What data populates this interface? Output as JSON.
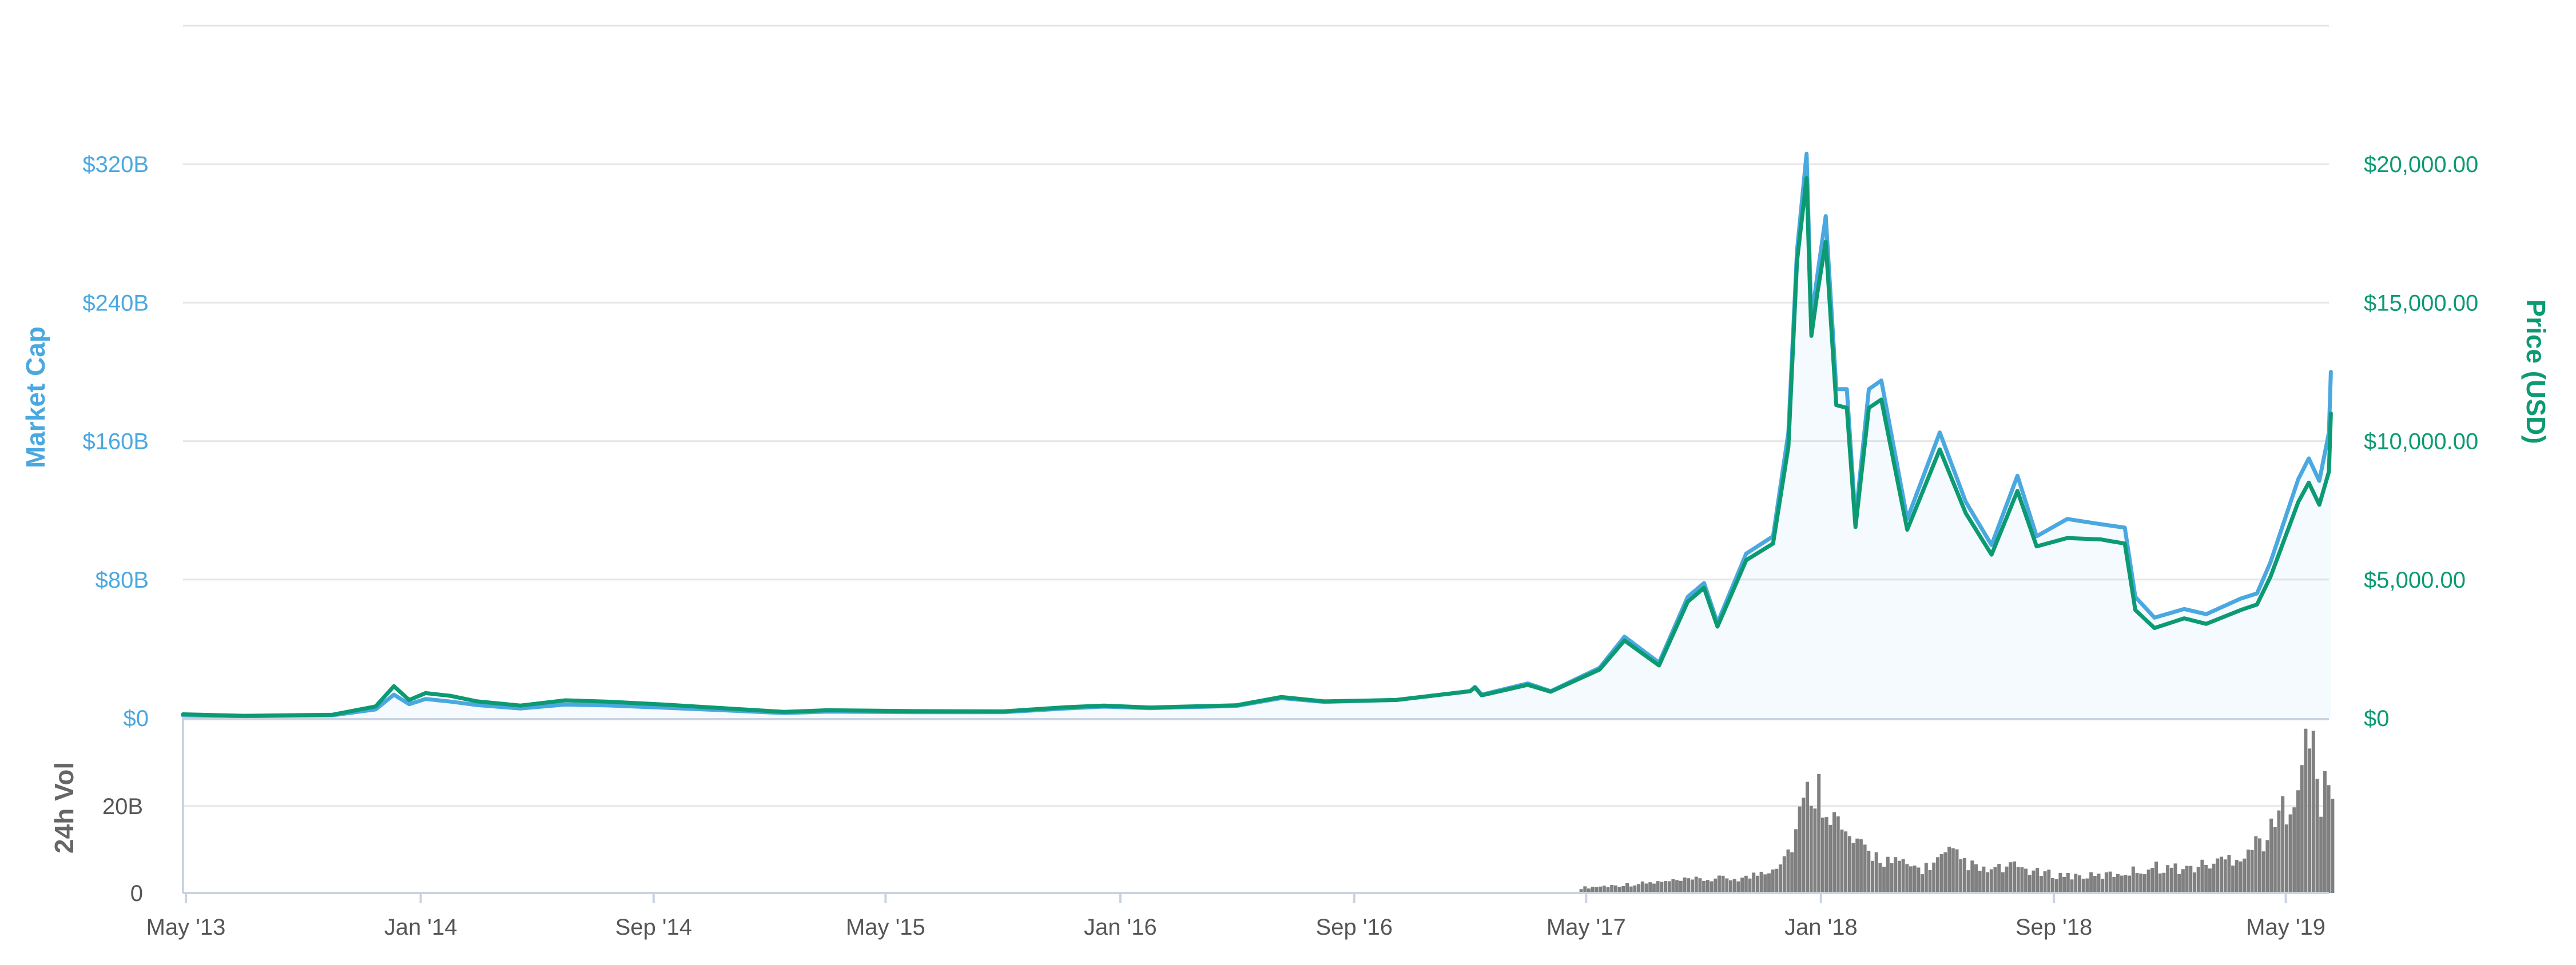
{
  "chart_data": {
    "type": "line",
    "colors": {
      "market_cap": "#4aa8e0",
      "price": "#0b9a72",
      "volume": "#808080",
      "grid": "#e6e6e6",
      "axis": "#c9d3e0",
      "text": "#555555",
      "volume_label": "#666666"
    },
    "axes": {
      "left": {
        "label": "Market Cap",
        "ticks": [
          "$0",
          "$80B",
          "$160B",
          "$240B",
          "$320B"
        ],
        "ylim": [
          0,
          400
        ]
      },
      "right": {
        "label": "Price (USD)",
        "ticks": [
          "$0",
          "$5,000.00",
          "$10,000.00",
          "$15,000.00",
          "$20,000.00"
        ],
        "ylim": [
          0,
          25000
        ]
      },
      "volume": {
        "label": "24h Vol",
        "ticks": [
          "0",
          "20B"
        ],
        "ylim": [
          0,
          40
        ]
      },
      "x": {
        "ticks": [
          "May '13",
          "Jan '14",
          "Sep '14",
          "May '15",
          "Jan '16",
          "Sep '16",
          "May '17",
          "Jan '18",
          "Sep '18",
          "May '19"
        ],
        "range": [
          "2013-04-28",
          "2019-06-15"
        ]
      }
    },
    "series": [
      {
        "name": "Market Cap",
        "axis": "left",
        "points": [
          [
            "2013-04-28",
            1.5
          ],
          [
            "2013-07-01",
            1.1
          ],
          [
            "2013-10-01",
            1.6
          ],
          [
            "2013-11-15",
            5.0
          ],
          [
            "2013-12-04",
            13.5
          ],
          [
            "2013-12-20",
            8.0
          ],
          [
            "2014-01-06",
            11.0
          ],
          [
            "2014-02-01",
            9.5
          ],
          [
            "2014-03-01",
            7.5
          ],
          [
            "2014-04-15",
            5.5
          ],
          [
            "2014-06-01",
            7.8
          ],
          [
            "2014-07-15",
            7.3
          ],
          [
            "2014-09-15",
            5.9
          ],
          [
            "2014-11-01",
            4.8
          ],
          [
            "2015-01-15",
            2.9
          ],
          [
            "2015-03-01",
            3.7
          ],
          [
            "2015-06-01",
            3.4
          ],
          [
            "2015-09-01",
            3.4
          ],
          [
            "2015-11-05",
            5.5
          ],
          [
            "2015-12-15",
            6.6
          ],
          [
            "2016-02-01",
            5.7
          ],
          [
            "2016-05-01",
            7.0
          ],
          [
            "2016-06-17",
            11.5
          ],
          [
            "2016-08-01",
            9.3
          ],
          [
            "2016-10-15",
            10.5
          ],
          [
            "2016-12-31",
            15.5
          ],
          [
            "2017-01-05",
            18.0
          ],
          [
            "2017-01-12",
            13.5
          ],
          [
            "2017-03-01",
            20.0
          ],
          [
            "2017-03-25",
            15.5
          ],
          [
            "2017-05-15",
            29.0
          ],
          [
            "2017-06-10",
            47.0
          ],
          [
            "2017-07-16",
            32.0
          ],
          [
            "2017-08-15",
            70.0
          ],
          [
            "2017-09-01",
            78.0
          ],
          [
            "2017-09-15",
            55.0
          ],
          [
            "2017-10-15",
            95.0
          ],
          [
            "2017-11-12",
            105.0
          ],
          [
            "2017-11-28",
            165.0
          ],
          [
            "2017-12-07",
            270.0
          ],
          [
            "2017-12-17",
            326.0
          ],
          [
            "2017-12-22",
            230.0
          ],
          [
            "2017-12-28",
            255.0
          ],
          [
            "2018-01-06",
            290.0
          ],
          [
            "2018-01-17",
            190.0
          ],
          [
            "2018-01-28",
            190.0
          ],
          [
            "2018-02-06",
            115.0
          ],
          [
            "2018-02-20",
            190.0
          ],
          [
            "2018-03-05",
            195.0
          ],
          [
            "2018-04-01",
            115.0
          ],
          [
            "2018-05-05",
            165.0
          ],
          [
            "2018-06-01",
            125.0
          ],
          [
            "2018-06-28",
            100.0
          ],
          [
            "2018-07-25",
            140.0
          ],
          [
            "2018-08-14",
            105.0
          ],
          [
            "2018-09-15",
            115.0
          ],
          [
            "2018-10-20",
            112.0
          ],
          [
            "2018-11-14",
            110.0
          ],
          [
            "2018-11-25",
            70.0
          ],
          [
            "2018-12-15",
            58.0
          ],
          [
            "2019-01-15",
            63.0
          ],
          [
            "2019-02-07",
            60.0
          ],
          [
            "2019-03-15",
            69.0
          ],
          [
            "2019-04-01",
            72.0
          ],
          [
            "2019-04-15",
            90.0
          ],
          [
            "2019-05-14",
            138.0
          ],
          [
            "2019-05-25",
            150.0
          ],
          [
            "2019-06-05",
            137.0
          ],
          [
            "2019-06-15",
            165.0
          ],
          [
            "2019-06-17",
            200.0
          ]
        ]
      },
      {
        "name": "Price (USD)",
        "axis": "right",
        "points": [
          [
            "2013-04-28",
            135
          ],
          [
            "2013-07-01",
            80
          ],
          [
            "2013-10-01",
            120
          ],
          [
            "2013-11-15",
            420
          ],
          [
            "2013-12-04",
            1150
          ],
          [
            "2013-12-20",
            650
          ],
          [
            "2014-01-06",
            900
          ],
          [
            "2014-02-01",
            800
          ],
          [
            "2014-03-01",
            600
          ],
          [
            "2014-04-15",
            450
          ],
          [
            "2014-06-01",
            640
          ],
          [
            "2014-07-15",
            590
          ],
          [
            "2014-09-15",
            480
          ],
          [
            "2014-11-01",
            380
          ],
          [
            "2015-01-15",
            220
          ],
          [
            "2015-03-01",
            280
          ],
          [
            "2015-06-01",
            250
          ],
          [
            "2015-09-01",
            240
          ],
          [
            "2015-11-05",
            390
          ],
          [
            "2015-12-15",
            450
          ],
          [
            "2016-02-01",
            380
          ],
          [
            "2016-05-01",
            460
          ],
          [
            "2016-06-17",
            760
          ],
          [
            "2016-08-01",
            600
          ],
          [
            "2016-10-15",
            650
          ],
          [
            "2016-12-31",
            970
          ],
          [
            "2017-01-05",
            1100
          ],
          [
            "2017-01-12",
            820
          ],
          [
            "2017-03-01",
            1200
          ],
          [
            "2017-03-25",
            950
          ],
          [
            "2017-05-15",
            1750
          ],
          [
            "2017-06-10",
            2800
          ],
          [
            "2017-07-16",
            1900
          ],
          [
            "2017-08-15",
            4200
          ],
          [
            "2017-09-01",
            4700
          ],
          [
            "2017-09-15",
            3300
          ],
          [
            "2017-10-15",
            5700
          ],
          [
            "2017-11-12",
            6300
          ],
          [
            "2017-11-28",
            9800
          ],
          [
            "2017-12-07",
            16500
          ],
          [
            "2017-12-17",
            19500
          ],
          [
            "2017-12-22",
            13800
          ],
          [
            "2017-12-28",
            15300
          ],
          [
            "2018-01-06",
            17200
          ],
          [
            "2018-01-17",
            11300
          ],
          [
            "2018-01-28",
            11200
          ],
          [
            "2018-02-06",
            6900
          ],
          [
            "2018-02-20",
            11200
          ],
          [
            "2018-03-05",
            11500
          ],
          [
            "2018-04-01",
            6800
          ],
          [
            "2018-05-05",
            9700
          ],
          [
            "2018-06-01",
            7400
          ],
          [
            "2018-06-28",
            5900
          ],
          [
            "2018-07-25",
            8200
          ],
          [
            "2018-08-14",
            6200
          ],
          [
            "2018-09-15",
            6500
          ],
          [
            "2018-10-20",
            6450
          ],
          [
            "2018-11-14",
            6300
          ],
          [
            "2018-11-25",
            3900
          ],
          [
            "2018-12-15",
            3250
          ],
          [
            "2019-01-15",
            3600
          ],
          [
            "2019-02-07",
            3400
          ],
          [
            "2019-03-15",
            3900
          ],
          [
            "2019-04-01",
            4100
          ],
          [
            "2019-04-15",
            5100
          ],
          [
            "2019-05-14",
            7800
          ],
          [
            "2019-05-25",
            8500
          ],
          [
            "2019-06-05",
            7700
          ],
          [
            "2019-06-15",
            8900
          ],
          [
            "2019-06-17",
            11000
          ]
        ]
      }
    ],
    "volume": {
      "name": "24h Vol",
      "axis": "volume",
      "points": [
        [
          "2017-04-24",
          1.2
        ],
        [
          "2017-06-15",
          2.0
        ],
        [
          "2017-08-20",
          3.0
        ],
        [
          "2017-10-15",
          3.5
        ],
        [
          "2017-11-10",
          6.0
        ],
        [
          "2017-11-28",
          10.0
        ],
        [
          "2017-12-10",
          19.0
        ],
        [
          "2017-12-22",
          25.0
        ],
        [
          "2018-01-05",
          22.0
        ],
        [
          "2018-01-20",
          14.0
        ],
        [
          "2018-02-10",
          10.0
        ],
        [
          "2018-03-15",
          7.0
        ],
        [
          "2018-04-15",
          5.5
        ],
        [
          "2018-05-15",
          9.0
        ],
        [
          "2018-06-15",
          5.0
        ],
        [
          "2018-07-25",
          6.0
        ],
        [
          "2018-08-15",
          4.5
        ],
        [
          "2018-09-15",
          4.0
        ],
        [
          "2018-10-15",
          3.8
        ],
        [
          "2018-11-20",
          5.0
        ],
        [
          "2018-12-15",
          6.0
        ],
        [
          "2019-01-15",
          5.5
        ],
        [
          "2019-02-15",
          7.0
        ],
        [
          "2019-03-15",
          9.0
        ],
        [
          "2019-04-15",
          14.0
        ],
        [
          "2019-05-15",
          28.0
        ],
        [
          "2019-05-25",
          36.0
        ],
        [
          "2019-06-05",
          22.0
        ],
        [
          "2019-06-17",
          24.0
        ]
      ]
    },
    "grid": true,
    "legend": "none"
  }
}
